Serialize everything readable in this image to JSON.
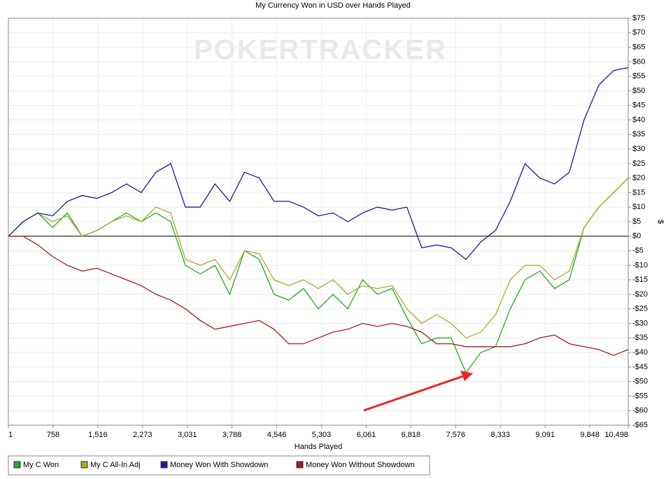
{
  "chart_data": {
    "type": "line",
    "title": "My Currency Won in USD over Hands Played",
    "watermark": "POKERTRACKER",
    "x_label": "Hands Played",
    "y_label": "$",
    "grid": true,
    "legend": "bottom",
    "xlim": [
      1,
      10498
    ],
    "xticks": [
      1,
      758,
      {
        "value": 1516,
        "label": "1,516"
      },
      {
        "value": 2273,
        "label": "2,273"
      },
      {
        "value": 3031,
        "label": "3,031"
      },
      {
        "value": 3788,
        "label": "3,788"
      },
      {
        "value": 4546,
        "label": "4,546"
      },
      {
        "value": 5303,
        "label": "5,303"
      },
      {
        "value": 6061,
        "label": "6,061"
      },
      {
        "value": 6818,
        "label": "6,818"
      },
      {
        "value": 7576,
        "label": "7,576"
      },
      {
        "value": 8333,
        "label": "8,333"
      },
      {
        "value": 9091,
        "label": "9,091"
      },
      {
        "value": 9848,
        "label": "9,848"
      },
      {
        "value": 10498,
        "label": "10,498"
      }
    ],
    "ylim": [
      -65,
      75
    ],
    "yticks": [
      {
        "value": 75,
        "label": "$75"
      },
      {
        "value": 70,
        "label": "$70"
      },
      {
        "value": 65,
        "label": "$65"
      },
      {
        "value": 60,
        "label": "$60"
      },
      {
        "value": 55,
        "label": "$55"
      },
      {
        "value": 50,
        "label": "$50"
      },
      {
        "value": 45,
        "label": "$45"
      },
      {
        "value": 40,
        "label": "$40"
      },
      {
        "value": 35,
        "label": "$35"
      },
      {
        "value": 30,
        "label": "$30"
      },
      {
        "value": 25,
        "label": "$25"
      },
      {
        "value": 20,
        "label": "$20"
      },
      {
        "value": 15,
        "label": "$15"
      },
      {
        "value": 10,
        "label": "$10"
      },
      {
        "value": 5,
        "label": "$5"
      },
      {
        "value": 0,
        "label": "$0"
      },
      {
        "value": -5,
        "label": "-$5"
      },
      {
        "value": -10,
        "label": "-$10"
      },
      {
        "value": -15,
        "label": "-$15"
      },
      {
        "value": -20,
        "label": "-$20"
      },
      {
        "value": -25,
        "label": "-$25"
      },
      {
        "value": -30,
        "label": "-$30"
      },
      {
        "value": -35,
        "label": "-$35"
      },
      {
        "value": -40,
        "label": "-$40"
      },
      {
        "value": -45,
        "label": "-$45"
      },
      {
        "value": -50,
        "label": "-$50"
      },
      {
        "value": -55,
        "label": "-$55"
      },
      {
        "value": -60,
        "label": "-$60"
      },
      {
        "value": -65,
        "label": "-$65"
      }
    ],
    "x": [
      1,
      250,
      500,
      750,
      1000,
      1250,
      1500,
      1750,
      2000,
      2250,
      2500,
      2750,
      3000,
      3250,
      3500,
      3750,
      4000,
      4250,
      4500,
      4750,
      5000,
      5250,
      5500,
      5750,
      6000,
      6250,
      6500,
      6750,
      7000,
      7250,
      7500,
      7750,
      8000,
      8250,
      8500,
      8750,
      9000,
      9250,
      9500,
      9750,
      10000,
      10250,
      10498
    ],
    "series": [
      {
        "name": "My C Won",
        "color": "#22aa22",
        "values": [
          0,
          5,
          8,
          3,
          8,
          0,
          2,
          5,
          8,
          5,
          8,
          5,
          -10,
          -13,
          -10,
          -20,
          -5,
          -8,
          -20,
          -22,
          -18,
          -25,
          -20,
          -25,
          -15,
          -20,
          -18,
          -28,
          -37,
          -35,
          -35,
          -47,
          -40,
          -38,
          -25,
          -15,
          -12,
          -18,
          -15,
          3,
          10,
          15,
          20
        ]
      },
      {
        "name": "My C All-In Adj",
        "color": "#aaaa22",
        "values": [
          0,
          5,
          8,
          5,
          7,
          0,
          2,
          5,
          7,
          5,
          10,
          8,
          -8,
          -10,
          -8,
          -15,
          -5,
          -6,
          -15,
          -17,
          -15,
          -18,
          -15,
          -20,
          -17,
          -18,
          -17,
          -25,
          -30,
          -27,
          -30,
          -35,
          -33,
          -27,
          -15,
          -10,
          -10,
          -15,
          -12,
          3,
          10,
          15,
          20
        ]
      },
      {
        "name": "Money Won With Showdown",
        "color": "#1a1a99",
        "values": [
          0,
          5,
          8,
          7,
          12,
          14,
          13,
          15,
          18,
          15,
          22,
          25,
          10,
          10,
          18,
          12,
          22,
          20,
          12,
          12,
          10,
          7,
          8,
          5,
          8,
          10,
          9,
          10,
          -4,
          -3,
          -4,
          -8,
          -2,
          2,
          12,
          25,
          20,
          18,
          22,
          40,
          52,
          57,
          58
        ]
      },
      {
        "name": "Money Won Without Showdown",
        "color": "#aa1a1a",
        "values": [
          0,
          0,
          -3,
          -7,
          -10,
          -12,
          -11,
          -13,
          -15,
          -17,
          -20,
          -22,
          -25,
          -29,
          -32,
          -31,
          -30,
          -29,
          -32,
          -37,
          -37,
          -35,
          -33,
          -32,
          -30,
          -31,
          -30,
          -31,
          -33,
          -37,
          -37,
          -38,
          -38,
          -38,
          -38,
          -37,
          -35,
          -34,
          -37,
          -38,
          -39,
          -41,
          -39
        ]
      }
    ]
  }
}
